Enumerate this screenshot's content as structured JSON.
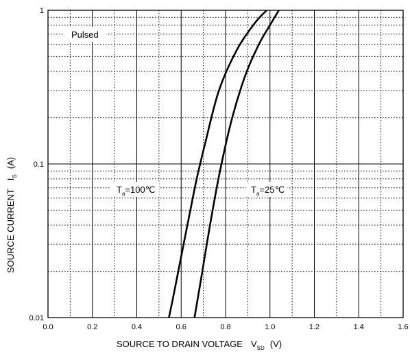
{
  "chart_data": {
    "type": "line",
    "x_scale": "linear",
    "y_scale": "log",
    "xlim": [
      0.0,
      1.6
    ],
    "ylim": [
      0.01,
      1
    ],
    "x_ticks": [
      "0.0",
      "0.2",
      "0.4",
      "0.6",
      "0.8",
      "1.0",
      "1.2",
      "1.4",
      "1.6"
    ],
    "y_ticks": [
      "0.01",
      "0.1",
      "1"
    ],
    "grid": true,
    "xlabel": {
      "main": "SOURCE TO DRAIN VOLTAGE",
      "symbol": "V",
      "subscript": "SD",
      "unit": "(V)"
    },
    "ylabel": {
      "main": "SOURCE CURRENT",
      "symbol": "I",
      "subscript": "S",
      "unit": "(A)"
    },
    "annotations": {
      "pulsed": "Pulsed",
      "ta100": {
        "symbol": "T",
        "subscript": "a",
        "value": "=100℃"
      },
      "ta25": {
        "symbol": "T",
        "subscript": "a",
        "value": "=25℃"
      }
    },
    "series": [
      {
        "label_ref": "ta100",
        "x": [
          0.545,
          0.57,
          0.6,
          0.635,
          0.67,
          0.71,
          0.77,
          0.85,
          0.93,
          0.985
        ],
        "y": [
          0.01,
          0.015,
          0.025,
          0.045,
          0.08,
          0.14,
          0.3,
          0.55,
          0.82,
          1.0
        ]
      },
      {
        "label_ref": "ta25",
        "x": [
          0.66,
          0.69,
          0.73,
          0.775,
          0.83,
          0.89,
          0.95,
          1.0,
          1.04
        ],
        "y": [
          0.01,
          0.018,
          0.04,
          0.09,
          0.2,
          0.38,
          0.6,
          0.8,
          1.0
        ]
      }
    ]
  }
}
